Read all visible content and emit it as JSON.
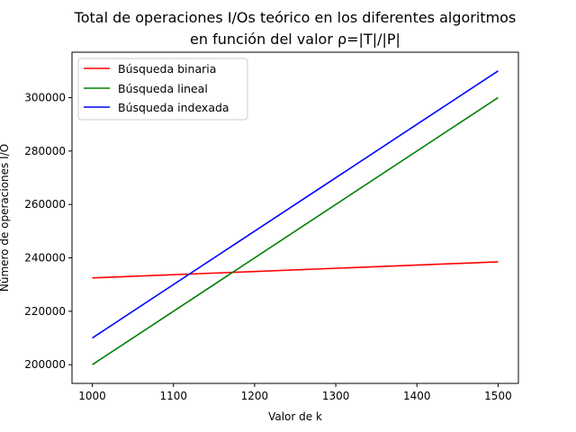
{
  "chart_data": {
    "type": "line",
    "title_line1": "Total de operaciones I/Os teórico en los diferentes algoritmos",
    "title_line2": "en función del valor ρ=|T|/|P|",
    "xlabel": "Valor de k",
    "ylabel": "Número de operaciones I/O",
    "xlim": [
      975,
      1525
    ],
    "ylim": [
      193000,
      317000
    ],
    "xticks": [
      1000,
      1100,
      1200,
      1300,
      1400,
      1500
    ],
    "yticks": [
      200000,
      220000,
      240000,
      260000,
      280000,
      300000
    ],
    "grid": false,
    "legend_position": "top-left",
    "x": [
      1000,
      1500
    ],
    "series": [
      {
        "name": "Búsqueda binaria",
        "color": "#ff0000",
        "values": [
          232500,
          238500
        ]
      },
      {
        "name": "Búsqueda lineal",
        "color": "#008000",
        "values": [
          200000,
          300000
        ]
      },
      {
        "name": "Búsqueda indexada",
        "color": "#0000ff",
        "values": [
          210000,
          310000
        ]
      }
    ]
  }
}
